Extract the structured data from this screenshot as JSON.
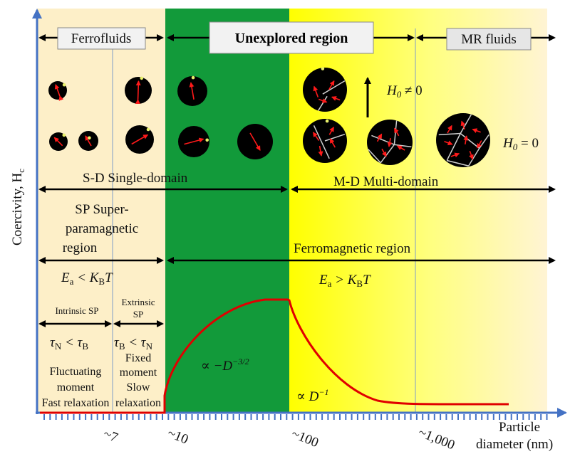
{
  "y_axis_label": "Coercivity, H",
  "y_axis_sub": "c",
  "x_axis_label_line1": "Particle",
  "x_axis_label_line2": "diameter (nm)",
  "tick_labels": [
    "~7",
    "~10",
    "~100",
    "~1,000"
  ],
  "regions": {
    "ferrofluids": "Ferrofluids",
    "unexplored": "Unexplored region",
    "mr_fluids": "MR fluids"
  },
  "domain_labels": {
    "single": "S-D Single-domain",
    "multi": "M-D Multi-domain",
    "sp_line1": "SP Super-",
    "sp_line2": "paramagnetic",
    "sp_line3": "region",
    "ferro": "Ferromagnetic region"
  },
  "energy": {
    "left_E": "E",
    "left_sub": "a",
    "left_rel": " < K",
    "left_K_sub": "B",
    "left_T": "T",
    "right_rel": " > K"
  },
  "intrinsic": {
    "label": "Intrinsic SP",
    "extrinsic1": "Extrinsic",
    "extrinsic2": "SP",
    "tau_left": "τ",
    "tau_N": "N",
    "tau_lt": " < τ",
    "tau_B": "B"
  },
  "descriptions": {
    "fluct1": "Fluctuating",
    "fluct2": "moment",
    "fluct3": "Fast relaxation",
    "fixed1": "Fixed",
    "fixed2": "moment",
    "fixed3": "Slow",
    "fixed4": "relaxation"
  },
  "field": {
    "h0_ne": "H",
    "h0_sub": "0",
    "h0_ne_rel": " ≠ 0",
    "h0_eq_rel": " = 0"
  },
  "scaling": {
    "left_prefix": "∝ −D",
    "left_exp": "−3/2",
    "right_prefix": "∝ D",
    "right_exp": "−1"
  },
  "colors": {
    "sp_bg": "#FDEFC8",
    "unexplored_bg": "#129A3A",
    "yellow_start": "#FFFF00",
    "yellow_end": "#FFF4D4",
    "axis": "#4472C4",
    "curve": "#E00000",
    "arrow_red": "#FF1A1A"
  }
}
